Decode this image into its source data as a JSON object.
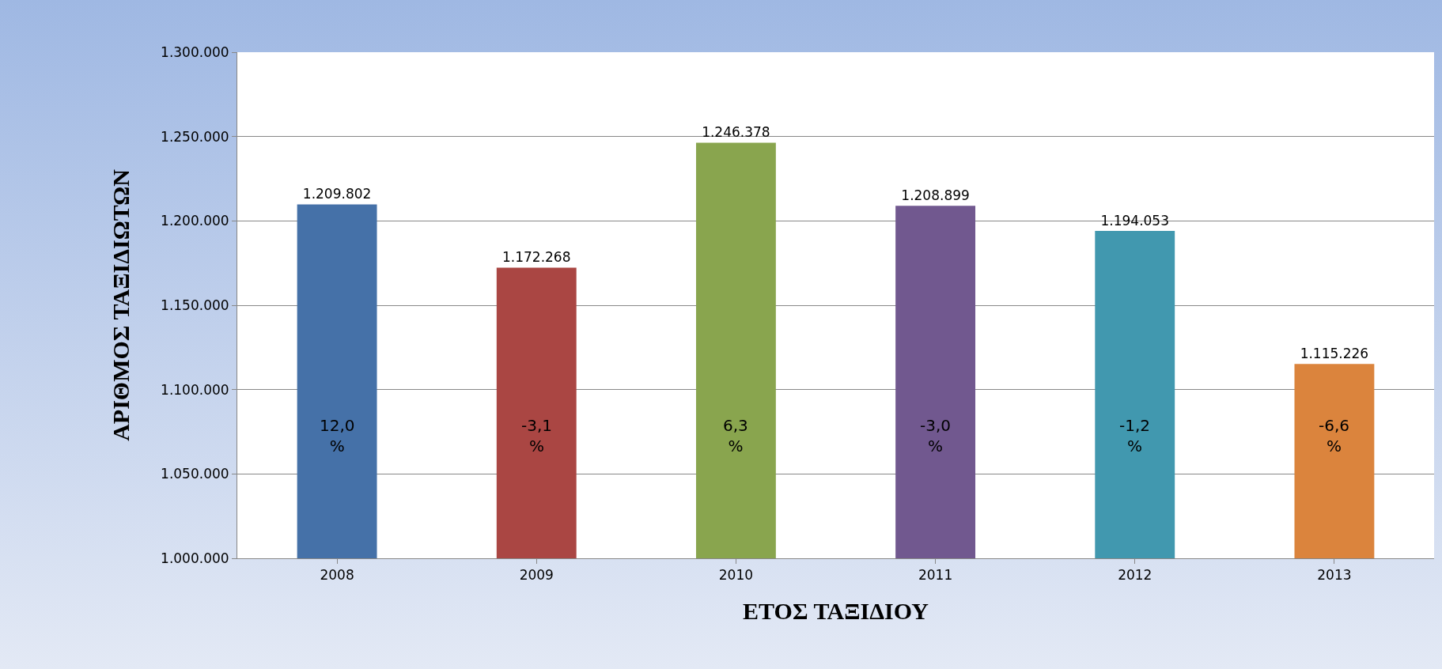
{
  "chart_data": {
    "type": "bar",
    "xlabel": "ΕΤΟΣ ΤΑΞΙΔΙΟΥ",
    "ylabel": "ΑΡΙΘΜΟΣ ΤΑΞΙΔΙΩΤΩΝ",
    "categories": [
      "2008",
      "2009",
      "2010",
      "2011",
      "2012",
      "2013"
    ],
    "values": [
      1209802,
      1172268,
      1246378,
      1208899,
      1194053,
      1115226
    ],
    "colors": [
      "#4571a8",
      "#aa4643",
      "#89a54e",
      "#71588f",
      "#4198af",
      "#db843d"
    ],
    "value_labels": [
      "1.209.802",
      "1.172.268",
      "1.246.378",
      "1.208.899",
      "1.194.053",
      "1.115.226"
    ],
    "ylim": [
      1000000,
      1300000
    ],
    "yticks": [
      {
        "value": 1000000,
        "label": "1.000.000"
      },
      {
        "value": 1050000,
        "label": "1.050.000"
      },
      {
        "value": 1100000,
        "label": "1.100.000"
      },
      {
        "value": 1150000,
        "label": "1.150.000"
      },
      {
        "value": 1200000,
        "label": "1.200.000"
      },
      {
        "value": 1250000,
        "label": "1.250.000"
      },
      {
        "value": 1300000,
        "label": "1.300.000"
      }
    ],
    "annotations": [
      "12,0 %",
      "-3,1 %",
      "6,3 %",
      "-3,0 %",
      "-1,2 %",
      "-6,6 %"
    ],
    "grid": "y"
  }
}
